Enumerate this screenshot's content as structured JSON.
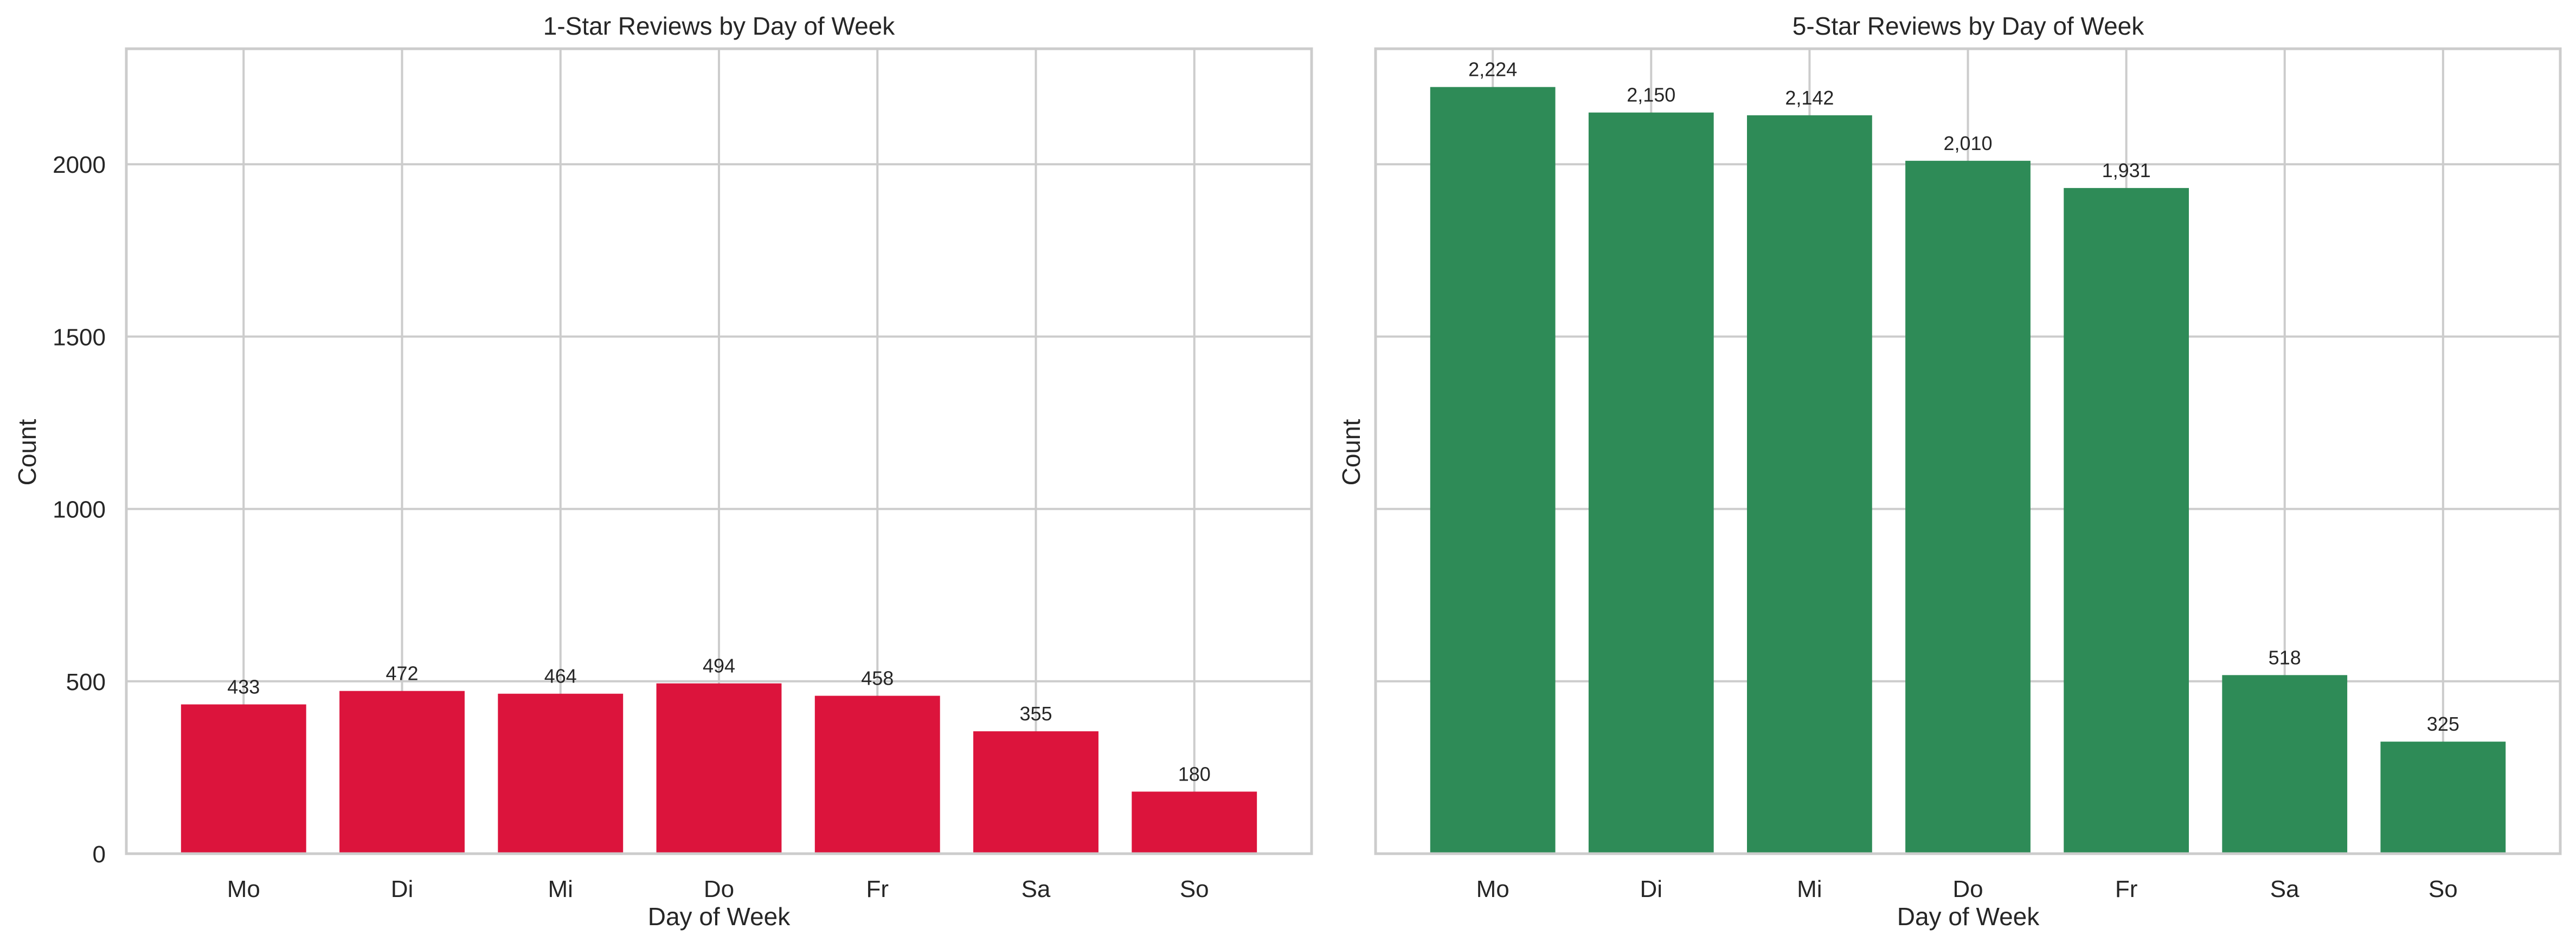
{
  "chart_data": [
    {
      "type": "bar",
      "title": "1-Star Reviews by Day of Week",
      "xlabel": "Day of Week",
      "ylabel": "Count",
      "categories": [
        "Mo",
        "Di",
        "Mi",
        "Do",
        "Fr",
        "Sa",
        "So"
      ],
      "values": [
        433,
        472,
        464,
        494,
        458,
        355,
        180
      ],
      "value_labels": [
        "433",
        "472",
        "464",
        "494",
        "458",
        "355",
        "180"
      ],
      "ylim": [
        0,
        2335
      ],
      "yticks": [
        0,
        500,
        1000,
        1500,
        2000
      ],
      "ytick_labels": [
        "0",
        "500",
        "1000",
        "1500",
        "2000"
      ],
      "show_yticks": true,
      "grid": true,
      "color": "#DC143C"
    },
    {
      "type": "bar",
      "title": "5-Star Reviews by Day of Week",
      "xlabel": "Day of Week",
      "ylabel": "Count",
      "categories": [
        "Mo",
        "Di",
        "Mi",
        "Do",
        "Fr",
        "Sa",
        "So"
      ],
      "values": [
        2224,
        2150,
        2142,
        2010,
        1931,
        518,
        325
      ],
      "value_labels": [
        "2,224",
        "2,150",
        "2,142",
        "2,010",
        "1,931",
        "518",
        "325"
      ],
      "ylim": [
        0,
        2335
      ],
      "yticks": [
        0,
        500,
        1000,
        1500,
        2000
      ],
      "ytick_labels": [
        "0",
        "500",
        "1000",
        "1500",
        "2000"
      ],
      "show_yticks": false,
      "grid": true,
      "color": "#2E8B57"
    }
  ]
}
